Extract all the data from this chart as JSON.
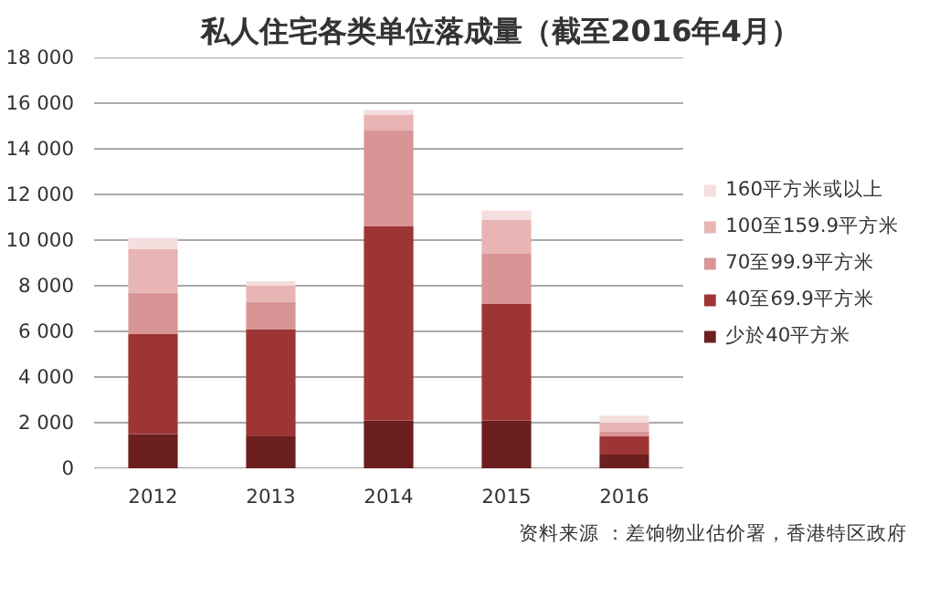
{
  "chart_data": {
    "type": "bar",
    "stacked": true,
    "title": "私人住宅各类单位落成量（截至2016年4月）",
    "categories": [
      "2012",
      "2013",
      "2014",
      "2015",
      "2016"
    ],
    "series": [
      {
        "name": "少於40平方米",
        "color": "#6b1f1f",
        "values": [
          1500,
          1400,
          2100,
          2100,
          600
        ]
      },
      {
        "name": "40至69.9平方米",
        "color": "#9e3535",
        "values": [
          4400,
          4700,
          8500,
          5100,
          800
        ]
      },
      {
        "name": "70至99.9平方米",
        "color": "#d99595",
        "values": [
          1800,
          1200,
          4200,
          2200,
          200
        ]
      },
      {
        "name": "100至159.9平方米",
        "color": "#e8b4b4",
        "values": [
          1900,
          700,
          700,
          1500,
          400
        ]
      },
      {
        "name": "160平方米或以上",
        "color": "#f4dede",
        "values": [
          500,
          200,
          200,
          400,
          300
        ]
      }
    ],
    "ylim": [
      0,
      18000
    ],
    "yticks": [
      {
        "value": 0,
        "label": "0"
      },
      {
        "value": 2000,
        "label": "2 000"
      },
      {
        "value": 4000,
        "label": "4 000"
      },
      {
        "value": 6000,
        "label": "6 000"
      },
      {
        "value": 8000,
        "label": "8 000"
      },
      {
        "value": 10000,
        "label": "10 000"
      },
      {
        "value": 12000,
        "label": "12 000"
      },
      {
        "value": 14000,
        "label": "14 000"
      },
      {
        "value": 16000,
        "label": "16 000"
      },
      {
        "value": 18000,
        "label": "18 000"
      }
    ],
    "grid": "y",
    "legend": "right",
    "annotations": [
      "资料来源 ：差饷物业估价署，香港特区政府"
    ]
  }
}
